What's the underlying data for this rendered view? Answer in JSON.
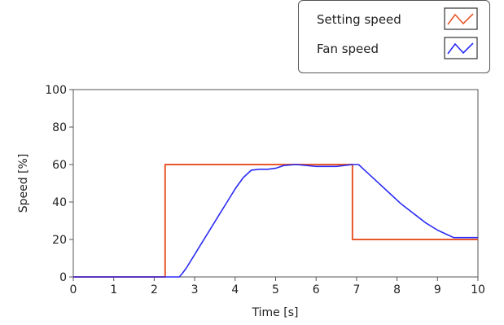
{
  "chart_data": {
    "type": "line",
    "title": "",
    "xlabel": "Time [s]",
    "ylabel": "Speed [%]",
    "xlim": [
      0,
      10
    ],
    "ylim": [
      0,
      100
    ],
    "xticks": [
      "0",
      "1",
      "2",
      "3",
      "4",
      "5",
      "6",
      "7",
      "8",
      "9",
      "10"
    ],
    "yticks": [
      "0",
      "20",
      "40",
      "60",
      "80",
      "100"
    ],
    "grid": false,
    "legend_position": "top-right",
    "series": [
      {
        "name": "Setting speed",
        "color": "#e8582a",
        "x": [
          0,
          2.27,
          2.27,
          6.9,
          6.9,
          10
        ],
        "y": [
          0,
          0,
          60,
          60,
          20,
          20
        ]
      },
      {
        "name": "Fan speed",
        "color": "#2b2bf5",
        "x": [
          0,
          2.6,
          2.62,
          2.7,
          2.8,
          3.0,
          3.2,
          3.4,
          3.6,
          3.8,
          4.0,
          4.2,
          4.4,
          4.6,
          4.8,
          5.0,
          5.2,
          5.5,
          6.0,
          6.5,
          6.9,
          7.05,
          7.2,
          7.5,
          7.8,
          8.1,
          8.4,
          8.7,
          9.0,
          9.2,
          9.4,
          9.6,
          9.8,
          10.0
        ],
        "y": [
          0,
          0,
          0,
          2,
          5,
          12,
          19,
          26,
          33,
          40,
          47,
          53,
          57,
          57.5,
          57.5,
          58,
          59.5,
          60,
          59,
          59,
          60,
          60,
          57,
          51,
          45,
          39,
          34,
          29,
          25,
          23,
          21,
          21,
          21,
          21
        ]
      }
    ]
  },
  "legend": {
    "items": [
      {
        "label": "Setting speed",
        "color": "#e8582a"
      },
      {
        "label": "Fan speed",
        "color": "#2b2bf5"
      }
    ]
  }
}
